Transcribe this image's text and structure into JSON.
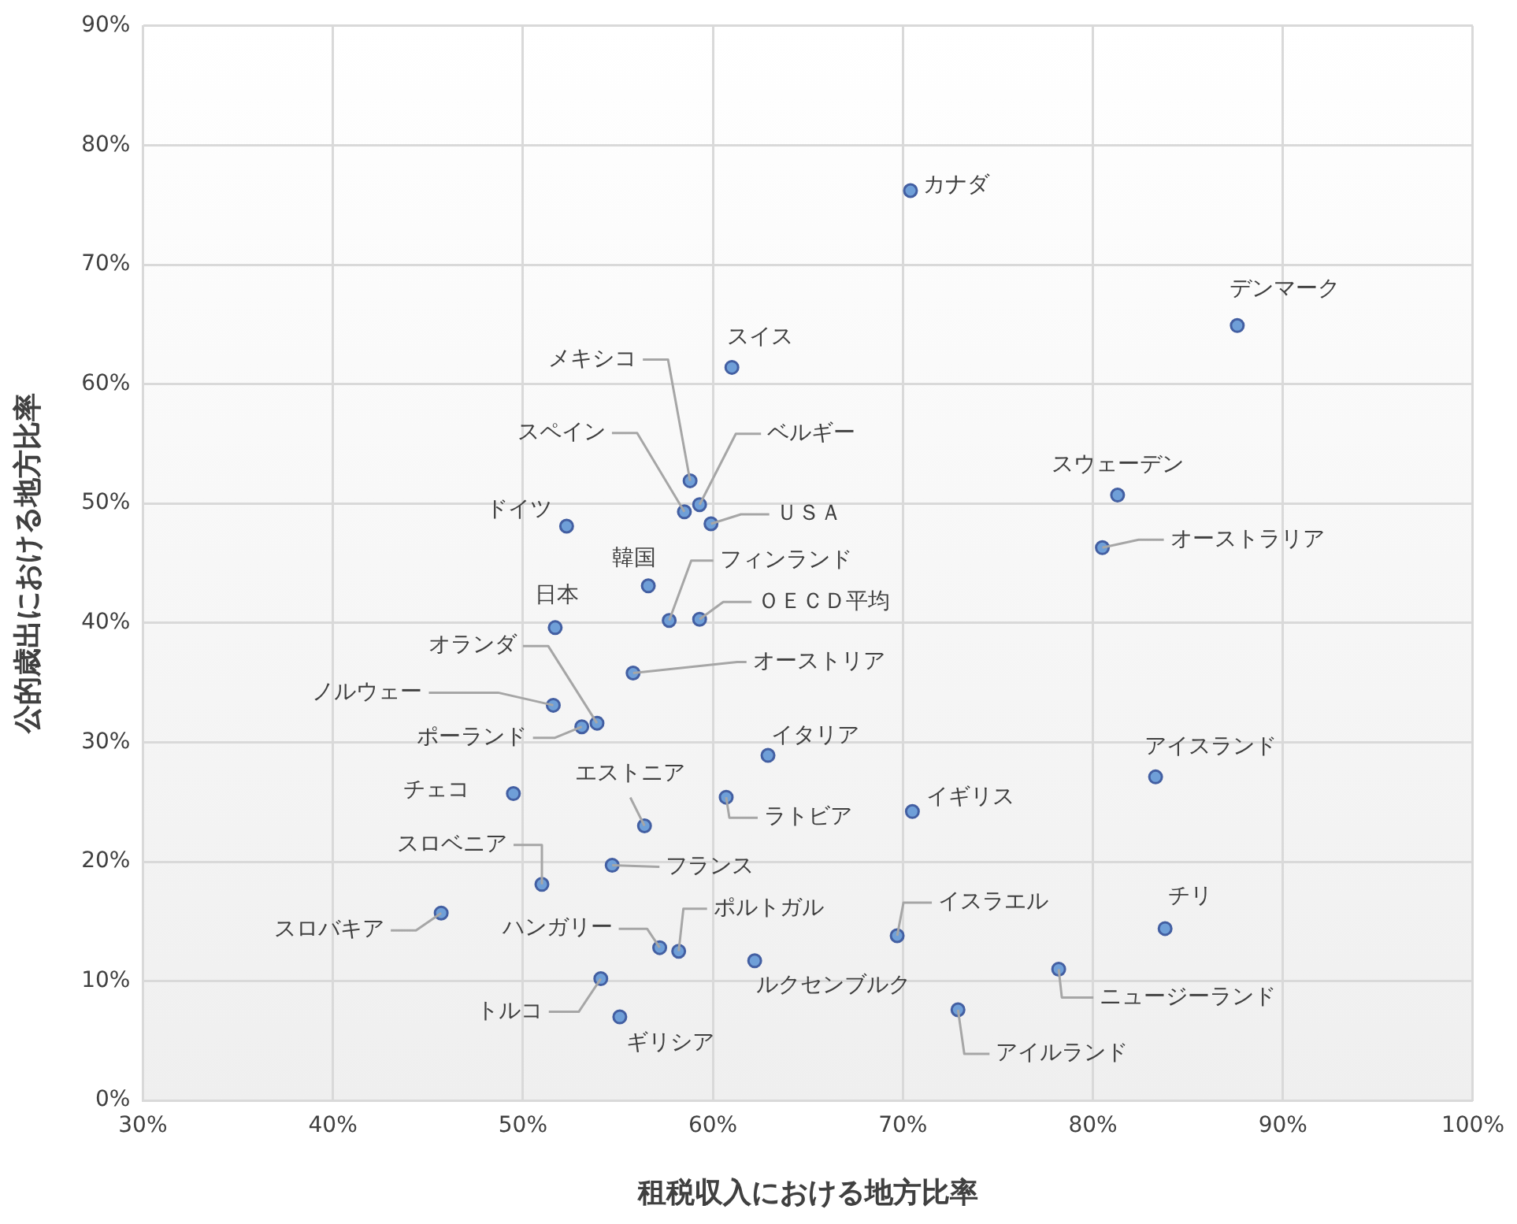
{
  "chart_data": {
    "type": "scatter",
    "xlabel": "租税収入における地方比率",
    "ylabel": "公的歳出における地方比率",
    "x": [
      70.4,
      87.6,
      61.0,
      58.8,
      58.5,
      59.3,
      59.9,
      52.3,
      81.3,
      80.5,
      56.6,
      57.7,
      59.3,
      51.7,
      55.8,
      53.9,
      51.6,
      53.1,
      62.9,
      49.5,
      56.4,
      60.7,
      70.5,
      83.3,
      51.0,
      54.7,
      45.7,
      57.2,
      58.2,
      62.2,
      69.7,
      83.8,
      78.2,
      54.1,
      55.1,
      72.9
    ],
    "series": [
      {
        "color": "#6f9fd8",
        "values": [
          76.2,
          64.9,
          61.4,
          51.9,
          49.3,
          49.9,
          48.3,
          48.1,
          50.7,
          46.3,
          43.1,
          40.2,
          40.3,
          39.6,
          35.8,
          31.6,
          33.1,
          31.3,
          28.9,
          25.7,
          23.0,
          25.4,
          24.2,
          27.1,
          18.1,
          19.7,
          15.7,
          12.8,
          12.5,
          11.7,
          13.8,
          14.4,
          11.0,
          10.2,
          7.0,
          7.6
        ]
      }
    ],
    "xlim": [
      30,
      100
    ],
    "ylim": [
      0,
      90
    ],
    "xticks": [
      {
        "value": 30,
        "label": "30%"
      },
      {
        "value": 40,
        "label": "40%"
      },
      {
        "value": 50,
        "label": "50%"
      },
      {
        "value": 60,
        "label": "60%"
      },
      {
        "value": 70,
        "label": "70%"
      },
      {
        "value": 80,
        "label": "80%"
      },
      {
        "value": 90,
        "label": "90%"
      },
      {
        "value": 100,
        "label": "100%"
      }
    ],
    "yticks": [
      {
        "value": 0,
        "label": "0%"
      },
      {
        "value": 10,
        "label": "10%"
      },
      {
        "value": 20,
        "label": "20%"
      },
      {
        "value": 30,
        "label": "30%"
      },
      {
        "value": 40,
        "label": "40%"
      },
      {
        "value": 50,
        "label": "50%"
      },
      {
        "value": 60,
        "label": "60%"
      },
      {
        "value": 70,
        "label": "70%"
      },
      {
        "value": 80,
        "label": "80%"
      },
      {
        "value": 90,
        "label": "90%"
      }
    ],
    "grid": true,
    "legend": false,
    "marker": "circle",
    "annotations": [
      {
        "text": "カナダ",
        "x": 70.4,
        "y": 76.2
      },
      {
        "text": "デンマーク",
        "x": 87.6,
        "y": 64.9
      },
      {
        "text": "スイス",
        "x": 61.0,
        "y": 61.4
      },
      {
        "text": "メキシコ",
        "x": 58.8,
        "y": 51.9
      },
      {
        "text": "スペイン",
        "x": 58.5,
        "y": 49.3
      },
      {
        "text": "ベルギー",
        "x": 59.3,
        "y": 49.9
      },
      {
        "text": "ＵＳＡ",
        "x": 59.9,
        "y": 48.3
      },
      {
        "text": "ドイツ",
        "x": 52.3,
        "y": 48.1
      },
      {
        "text": "スウェーデン",
        "x": 81.3,
        "y": 50.7
      },
      {
        "text": "オーストラリア",
        "x": 80.5,
        "y": 46.3
      },
      {
        "text": "韓国",
        "x": 56.6,
        "y": 43.1
      },
      {
        "text": "フィンランド",
        "x": 57.7,
        "y": 40.2
      },
      {
        "text": "ＯＥＣＤ平均",
        "x": 59.3,
        "y": 40.3
      },
      {
        "text": "日本",
        "x": 51.7,
        "y": 39.6
      },
      {
        "text": "オーストリア",
        "x": 55.8,
        "y": 35.8
      },
      {
        "text": "オランダ",
        "x": 53.9,
        "y": 31.6
      },
      {
        "text": "ノルウェー",
        "x": 51.6,
        "y": 33.1
      },
      {
        "text": "ポーランド",
        "x": 53.1,
        "y": 31.3
      },
      {
        "text": "イタリア",
        "x": 62.9,
        "y": 28.9
      },
      {
        "text": "チェコ",
        "x": 49.5,
        "y": 25.7
      },
      {
        "text": "エストニア",
        "x": 56.4,
        "y": 23.0
      },
      {
        "text": "ラトビア",
        "x": 60.7,
        "y": 25.4
      },
      {
        "text": "イギリス",
        "x": 70.5,
        "y": 24.2
      },
      {
        "text": "アイスランド",
        "x": 83.3,
        "y": 27.1
      },
      {
        "text": "スロベニア",
        "x": 51.0,
        "y": 18.1
      },
      {
        "text": "フランス",
        "x": 54.7,
        "y": 19.7
      },
      {
        "text": "スロバキア",
        "x": 45.7,
        "y": 15.7
      },
      {
        "text": "ハンガリー",
        "x": 57.2,
        "y": 12.8
      },
      {
        "text": "ポルトガル",
        "x": 58.2,
        "y": 12.5
      },
      {
        "text": "ルクセンブルク",
        "x": 62.2,
        "y": 11.7
      },
      {
        "text": "イスラエル",
        "x": 69.7,
        "y": 13.8
      },
      {
        "text": "チリ",
        "x": 83.8,
        "y": 14.4
      },
      {
        "text": "ニュージーランド",
        "x": 78.2,
        "y": 11.0
      },
      {
        "text": "トルコ",
        "x": 54.1,
        "y": 10.2
      },
      {
        "text": "ギリシア",
        "x": 55.1,
        "y": 7.0
      },
      {
        "text": "アイルランド",
        "x": 72.9,
        "y": 7.6
      }
    ]
  }
}
